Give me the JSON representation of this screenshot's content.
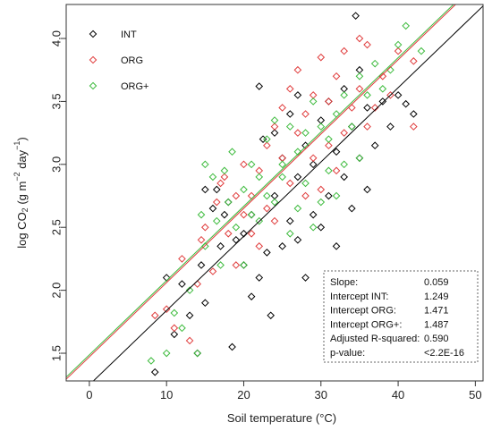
{
  "chart_data": {
    "type": "scatter",
    "xlabel": "Soil temperature (°C)",
    "ylabel": "log CO2 (g m-2 day-1)",
    "ylabel_parts": {
      "base": "log CO",
      "co2_sub": "2",
      "mid": " (g m",
      "exp1": "−2",
      "day": " day",
      "exp2": "−1",
      "close": ")"
    },
    "xlim": [
      -3,
      51
    ],
    "ylim": [
      1.28,
      4.27
    ],
    "xticks": [
      0,
      10,
      20,
      30,
      40,
      50
    ],
    "yticks": [
      1.5,
      2.0,
      2.5,
      3.0,
      3.5,
      4.0
    ],
    "xtick_labels": [
      "0",
      "10",
      "20",
      "30",
      "40",
      "50"
    ],
    "ytick_labels": [
      "1.5",
      "2.0",
      "2.5",
      "3.0",
      "3.5",
      "4.0"
    ],
    "grid": false,
    "legend_position": "top-left",
    "slope": 0.059,
    "series": [
      {
        "name": "INT",
        "color": "#000000",
        "intercept": 1.249,
        "points": [
          [
            8.5,
            1.35
          ],
          [
            10,
            2.1
          ],
          [
            11,
            1.65
          ],
          [
            12,
            2.05
          ],
          [
            13,
            1.8
          ],
          [
            14,
            1.5
          ],
          [
            14.5,
            2.2
          ],
          [
            15,
            1.9
          ],
          [
            15,
            2.8
          ],
          [
            16,
            2.65
          ],
          [
            16.5,
            2.8
          ],
          [
            17,
            2.35
          ],
          [
            17.5,
            2.6
          ],
          [
            18,
            2.7
          ],
          [
            18.5,
            1.55
          ],
          [
            19,
            2.4
          ],
          [
            20,
            2.2
          ],
          [
            20,
            2.45
          ],
          [
            21,
            1.95
          ],
          [
            21,
            2.6
          ],
          [
            22,
            2.1
          ],
          [
            22,
            3.62
          ],
          [
            22.5,
            3.2
          ],
          [
            23,
            2.3
          ],
          [
            23.5,
            1.8
          ],
          [
            24,
            2.75
          ],
          [
            24,
            3.25
          ],
          [
            25,
            2.35
          ],
          [
            25,
            3.05
          ],
          [
            26,
            2.55
          ],
          [
            26,
            3.4
          ],
          [
            27,
            2.4
          ],
          [
            27,
            2.9
          ],
          [
            27,
            3.55
          ],
          [
            28,
            2.1
          ],
          [
            28,
            3.15
          ],
          [
            29,
            2.6
          ],
          [
            29,
            3.0
          ],
          [
            30,
            2.5
          ],
          [
            30,
            3.35
          ],
          [
            31,
            2.75
          ],
          [
            31,
            3.5
          ],
          [
            32,
            2.35
          ],
          [
            32,
            3.1
          ],
          [
            33,
            2.9
          ],
          [
            33,
            3.6
          ],
          [
            34,
            2.65
          ],
          [
            34,
            3.3
          ],
          [
            35,
            3.05
          ],
          [
            35,
            3.75
          ],
          [
            36,
            2.8
          ],
          [
            36,
            3.45
          ],
          [
            34.5,
            4.18
          ],
          [
            37,
            3.15
          ],
          [
            38,
            3.5
          ],
          [
            39,
            3.3
          ],
          [
            40,
            3.55
          ],
          [
            41,
            3.48
          ],
          [
            42,
            3.4
          ]
        ]
      },
      {
        "name": "ORG",
        "color": "#e03c3c",
        "intercept": 1.471,
        "points": [
          [
            8.5,
            1.8
          ],
          [
            10,
            1.85
          ],
          [
            11,
            1.7
          ],
          [
            12,
            2.25
          ],
          [
            13,
            1.6
          ],
          [
            14,
            2.05
          ],
          [
            14.5,
            2.4
          ],
          [
            15,
            2.5
          ],
          [
            16,
            2.15
          ],
          [
            16.5,
            2.7
          ],
          [
            17,
            2.85
          ],
          [
            17.5,
            2.9
          ],
          [
            18,
            2.45
          ],
          [
            19,
            2.2
          ],
          [
            19,
            2.75
          ],
          [
            20,
            2.6
          ],
          [
            20,
            3.0
          ],
          [
            21,
            2.75
          ],
          [
            21,
            2.45
          ],
          [
            22,
            2.95
          ],
          [
            22,
            2.35
          ],
          [
            23,
            3.15
          ],
          [
            23,
            2.65
          ],
          [
            24,
            3.3
          ],
          [
            24,
            2.55
          ],
          [
            25,
            3.05
          ],
          [
            25,
            3.45
          ],
          [
            26,
            2.85
          ],
          [
            26,
            3.6
          ],
          [
            27,
            3.25
          ],
          [
            27,
            3.75
          ],
          [
            28,
            2.75
          ],
          [
            28,
            3.4
          ],
          [
            29,
            3.05
          ],
          [
            29,
            3.55
          ],
          [
            30,
            2.8
          ],
          [
            30,
            3.85
          ],
          [
            31,
            3.15
          ],
          [
            31,
            3.5
          ],
          [
            32,
            3.7
          ],
          [
            32,
            2.95
          ],
          [
            33,
            3.25
          ],
          [
            33,
            3.9
          ],
          [
            34,
            3.45
          ],
          [
            35,
            3.6
          ],
          [
            35,
            4.0
          ],
          [
            36,
            3.3
          ],
          [
            36,
            3.95
          ],
          [
            37,
            3.45
          ],
          [
            38,
            3.7
          ],
          [
            39,
            3.55
          ],
          [
            40,
            3.9
          ],
          [
            42,
            3.3
          ],
          [
            42,
            3.82
          ]
        ]
      },
      {
        "name": "ORG+",
        "color": "#3dbb3d",
        "intercept": 1.487,
        "points": [
          [
            8,
            1.44
          ],
          [
            10,
            1.5
          ],
          [
            11,
            1.82
          ],
          [
            12,
            1.7
          ],
          [
            13,
            2.0
          ],
          [
            14,
            1.5
          ],
          [
            14.5,
            2.6
          ],
          [
            15,
            2.35
          ],
          [
            15,
            3.0
          ],
          [
            16,
            2.9
          ],
          [
            16.5,
            2.55
          ],
          [
            17,
            2.2
          ],
          [
            17.5,
            2.95
          ],
          [
            18,
            2.7
          ],
          [
            18.5,
            3.1
          ],
          [
            19,
            2.5
          ],
          [
            20,
            2.8
          ],
          [
            20,
            2.2
          ],
          [
            21,
            3.0
          ],
          [
            21,
            2.6
          ],
          [
            22,
            2.55
          ],
          [
            22,
            2.9
          ],
          [
            23,
            3.2
          ],
          [
            23,
            2.75
          ],
          [
            24,
            2.7
          ],
          [
            24,
            3.35
          ],
          [
            25,
            3.0
          ],
          [
            25,
            2.9
          ],
          [
            26,
            3.3
          ],
          [
            26,
            2.45
          ],
          [
            27,
            3.1
          ],
          [
            27,
            2.65
          ],
          [
            28,
            3.25
          ],
          [
            28,
            2.85
          ],
          [
            29,
            3.5
          ],
          [
            29,
            2.5
          ],
          [
            30,
            3.3
          ],
          [
            30,
            2.7
          ],
          [
            31,
            3.2
          ],
          [
            31,
            2.95
          ],
          [
            32,
            3.4
          ],
          [
            32,
            2.75
          ],
          [
            33,
            3.55
          ],
          [
            33,
            3.0
          ],
          [
            34,
            3.3
          ],
          [
            35,
            3.7
          ],
          [
            35,
            3.05
          ],
          [
            36,
            3.55
          ],
          [
            37,
            3.8
          ],
          [
            38,
            3.6
          ],
          [
            39,
            3.75
          ],
          [
            40,
            3.95
          ],
          [
            41,
            4.1
          ],
          [
            43,
            3.9
          ]
        ]
      }
    ],
    "stats": [
      {
        "label": "Slope:",
        "value": "0.059"
      },
      {
        "label": "Intercept INT:",
        "value": "1.249"
      },
      {
        "label": "Intercept ORG:",
        "value": "1.471"
      },
      {
        "label": "Intercept ORG+:",
        "value": "1.487"
      },
      {
        "label": "Adjusted R-squared:",
        "value": "0.590"
      },
      {
        "label": "p-value:",
        "value": "<2.2E-16"
      }
    ]
  }
}
